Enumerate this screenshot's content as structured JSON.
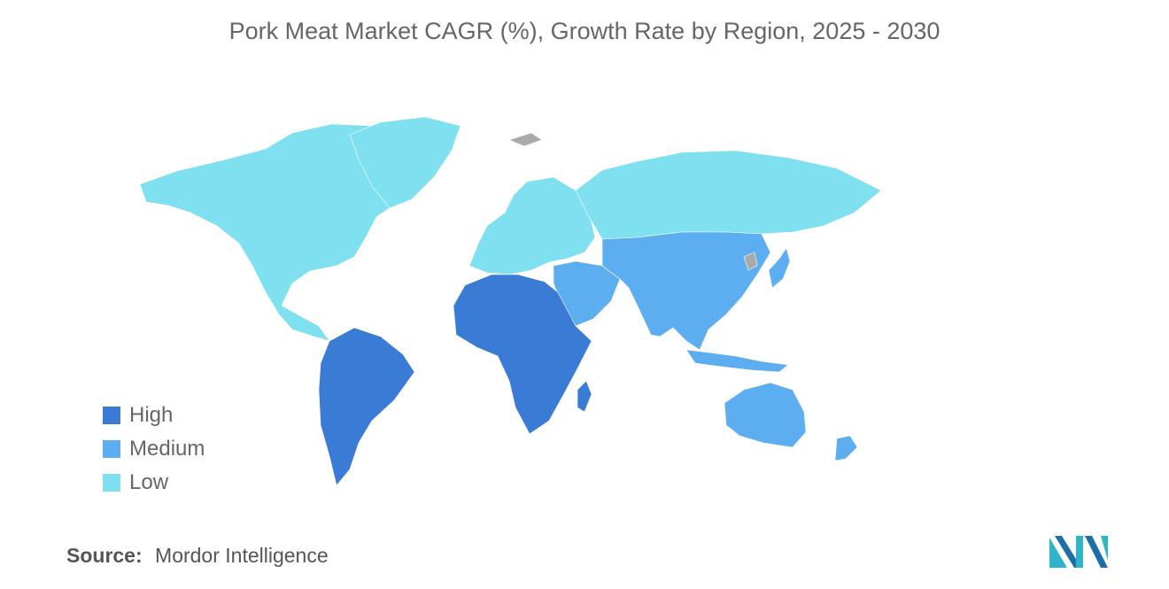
{
  "title": "Pork Meat Market CAGR (%), Growth Rate by Region, 2025 - 2030",
  "legend": [
    {
      "label": "High",
      "color": "#3a7bd5"
    },
    {
      "label": "Medium",
      "color": "#5caef0"
    },
    {
      "label": "Low",
      "color": "#7fe0ef"
    }
  ],
  "regions": {
    "north_america": "Low",
    "europe": "Low",
    "russia": "Low",
    "south_america": "High",
    "africa": "High",
    "middle_east": "Medium",
    "asia_pacific": "Medium"
  },
  "no_data_color": "#aaaaaa",
  "source": {
    "label": "Source:",
    "value": "Mordor Intelligence"
  },
  "logo_icon": "mordor-intelligence-logo-icon"
}
